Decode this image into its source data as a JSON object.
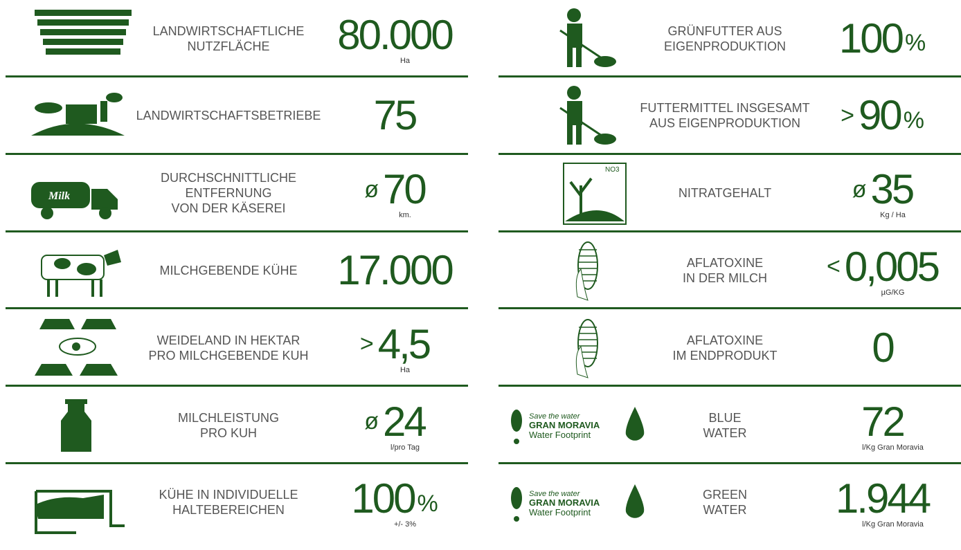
{
  "left": [
    {
      "label": [
        "LANDWIRTSCHAFTLICHE",
        "NUTZFLÄCHE"
      ],
      "value": "80.000",
      "unit": "Ha"
    },
    {
      "label": [
        "LANDWIRTSCHAFTSBETRIEBE"
      ],
      "value": "75"
    },
    {
      "label": [
        "DURCHSCHNITTLICHE",
        "ENTFERNUNG",
        "VON DER KÄSEREI"
      ],
      "prefix": "ø",
      "value": "70",
      "unit": "km.",
      "icon_text": [
        "Milk"
      ]
    },
    {
      "label": [
        "MILCHGEBENDE KÜHE"
      ],
      "value": "17.000"
    },
    {
      "label": [
        "WEIDELAND IN HEKTAR",
        "PRO MILCHGEBENDE KUH"
      ],
      "prefix": ">",
      "value": "4,5",
      "unit": "Ha"
    },
    {
      "label": [
        "MILCHLEISTUNG",
        "PRO KUH"
      ],
      "prefix": "ø",
      "value": "24",
      "unit": "l/pro Tag"
    },
    {
      "label": [
        "KÜHE IN INDIVIDUELLE",
        "HALTEBEREICHEN"
      ],
      "value": "100",
      "suffix": "%",
      "unit": "+/- 3%"
    }
  ],
  "right": [
    {
      "label": [
        "GRÜNFUTTER AUS",
        "EIGENPRODUKTION"
      ],
      "value": "100",
      "suffix": "%"
    },
    {
      "label": [
        "FUTTERMITTEL INSGESAMT",
        "AUS EIGENPRODUKTION"
      ],
      "prefix": ">",
      "value": "90",
      "suffix": "%"
    },
    {
      "label": [
        "NITRATGEHALT"
      ],
      "prefix": "ø",
      "value": "35",
      "unit": "Kg / Ha",
      "icon_text": [
        "NO3"
      ]
    },
    {
      "label": [
        "AFLATOXINE",
        "IN DER MILCH"
      ],
      "prefix": "<",
      "value": "0,005",
      "unit": "µG/KG"
    },
    {
      "label": [
        "AFLATOXINE",
        "IM ENDPRODUKT"
      ],
      "value": "0"
    },
    {
      "label": [
        "BLUE",
        "WATER"
      ],
      "value": "72",
      "unit": "l/Kg Gran Moravia",
      "icon_text": [
        "Save the water",
        "GRAN MORAVIA",
        "Water Footprint"
      ]
    },
    {
      "label": [
        "GREEN",
        "WATER"
      ],
      "value": "1.944",
      "unit": "l/Kg Gran Moravia",
      "icon_text": [
        "Save the water",
        "GRAN MORAVIA",
        "Water Footprint"
      ]
    }
  ]
}
